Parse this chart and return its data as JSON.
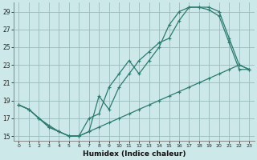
{
  "xlabel": "Humidex (Indice chaleur)",
  "xlim": [
    -0.5,
    23.5
  ],
  "ylim": [
    14.5,
    30.0
  ],
  "yticks": [
    15,
    17,
    19,
    21,
    23,
    25,
    27,
    29
  ],
  "xticks": [
    0,
    1,
    2,
    3,
    4,
    5,
    6,
    7,
    8,
    9,
    10,
    11,
    12,
    13,
    14,
    15,
    16,
    17,
    18,
    19,
    20,
    21,
    22,
    23
  ],
  "bg_color": "#cce8e8",
  "grid_color": "#99bbbb",
  "line_color": "#2d7a6e",
  "line1_x": [
    0,
    1,
    2,
    3,
    4,
    5,
    6,
    7,
    8,
    9,
    10,
    11,
    12,
    13,
    14,
    15,
    16,
    17,
    18,
    19,
    20,
    21,
    22,
    23
  ],
  "line1_y": [
    18.5,
    18.0,
    17.0,
    16.0,
    15.5,
    15.0,
    15.0,
    15.5,
    19.5,
    18.0,
    20.5,
    22.0,
    23.5,
    24.5,
    25.5,
    26.0,
    28.0,
    29.5,
    29.5,
    29.5,
    29.0,
    26.0,
    23.0,
    22.5
  ],
  "line2_x": [
    0,
    1,
    2,
    3,
    4,
    5,
    6,
    7,
    8,
    9,
    10,
    11,
    12,
    13,
    14,
    15,
    16,
    17,
    18,
    19,
    20,
    21,
    22,
    23
  ],
  "line2_y": [
    18.5,
    18.0,
    17.0,
    16.2,
    15.5,
    15.0,
    15.0,
    17.0,
    17.5,
    20.5,
    22.0,
    23.5,
    22.0,
    23.5,
    25.0,
    27.5,
    29.0,
    29.5,
    29.5,
    29.2,
    28.5,
    25.5,
    22.5,
    22.5
  ],
  "line3_x": [
    0,
    1,
    2,
    3,
    4,
    5,
    6,
    7,
    8,
    9,
    10,
    11,
    12,
    13,
    14,
    15,
    16,
    17,
    18,
    19,
    20,
    21,
    22,
    23
  ],
  "line3_y": [
    18.5,
    18.0,
    17.0,
    16.0,
    15.5,
    15.0,
    15.0,
    15.5,
    16.0,
    16.5,
    17.0,
    17.5,
    18.0,
    18.5,
    19.0,
    19.5,
    20.0,
    20.5,
    21.0,
    21.5,
    22.0,
    22.5,
    23.0,
    22.5
  ]
}
